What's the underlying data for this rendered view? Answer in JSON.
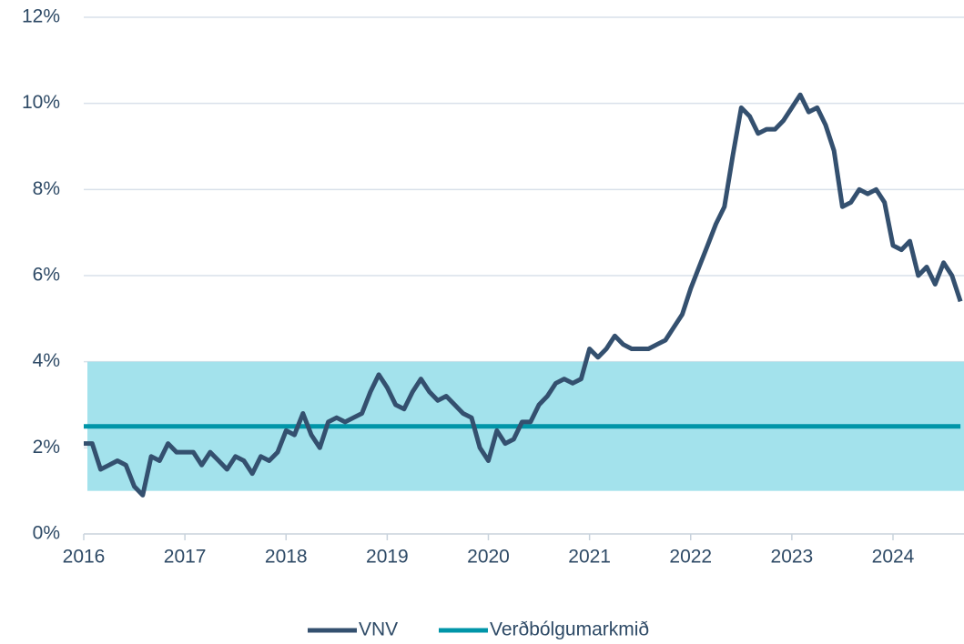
{
  "chart_data": {
    "type": "line",
    "categories": [
      "2016",
      null,
      null,
      null,
      null,
      null,
      null,
      null,
      null,
      null,
      null,
      null,
      "2017",
      null,
      null,
      null,
      null,
      null,
      null,
      null,
      null,
      null,
      null,
      null,
      "2018",
      null,
      null,
      null,
      null,
      null,
      null,
      null,
      null,
      null,
      null,
      null,
      "2019",
      null,
      null,
      null,
      null,
      null,
      null,
      null,
      null,
      null,
      null,
      null,
      "2020",
      null,
      null,
      null,
      null,
      null,
      null,
      null,
      null,
      null,
      null,
      null,
      "2021",
      null,
      null,
      null,
      null,
      null,
      null,
      null,
      null,
      null,
      null,
      null,
      "2022",
      null,
      null,
      null,
      null,
      null,
      null,
      null,
      null,
      null,
      null,
      null,
      "2023",
      null,
      null,
      null,
      null,
      null,
      null,
      null,
      null,
      null,
      null,
      null,
      "2024",
      null,
      null,
      null,
      null,
      null,
      null,
      null,
      null
    ],
    "series": [
      {
        "name": "VNV",
        "color": "#34506f",
        "values": [
          2.1,
          2.1,
          1.5,
          1.6,
          1.7,
          1.6,
          1.1,
          0.9,
          1.8,
          1.7,
          2.1,
          1.9,
          1.9,
          1.9,
          1.6,
          1.9,
          1.7,
          1.5,
          1.8,
          1.7,
          1.4,
          1.8,
          1.7,
          1.9,
          2.4,
          2.3,
          2.8,
          2.3,
          2.0,
          2.6,
          2.7,
          2.6,
          2.7,
          2.8,
          3.3,
          3.7,
          3.4,
          3.0,
          2.9,
          3.3,
          3.6,
          3.3,
          3.1,
          3.2,
          3.0,
          2.8,
          2.7,
          2.0,
          1.7,
          2.4,
          2.1,
          2.2,
          2.6,
          2.6,
          3.0,
          3.2,
          3.5,
          3.6,
          3.5,
          3.6,
          4.3,
          4.1,
          4.3,
          4.6,
          4.4,
          4.3,
          4.3,
          4.3,
          4.4,
          4.5,
          4.8,
          5.1,
          5.7,
          6.2,
          6.7,
          7.2,
          7.6,
          8.8,
          9.9,
          9.7,
          9.3,
          9.4,
          9.4,
          9.6,
          9.9,
          10.2,
          9.8,
          9.9,
          9.5,
          8.9,
          7.6,
          7.7,
          8.0,
          7.9,
          8.0,
          7.7,
          6.7,
          6.6,
          6.8,
          6.0,
          6.2,
          5.8,
          6.3,
          6.0,
          5.4
        ]
      },
      {
        "name": "Verðbólgumarkmið",
        "color": "#0095a8",
        "values": [
          2.5,
          2.5,
          2.5,
          2.5,
          2.5,
          2.5,
          2.5,
          2.5,
          2.5,
          2.5,
          2.5,
          2.5,
          2.5,
          2.5,
          2.5,
          2.5,
          2.5,
          2.5,
          2.5,
          2.5,
          2.5,
          2.5,
          2.5,
          2.5,
          2.5,
          2.5,
          2.5,
          2.5,
          2.5,
          2.5,
          2.5,
          2.5,
          2.5,
          2.5,
          2.5,
          2.5,
          2.5,
          2.5,
          2.5,
          2.5,
          2.5,
          2.5,
          2.5,
          2.5,
          2.5,
          2.5,
          2.5,
          2.5,
          2.5,
          2.5,
          2.5,
          2.5,
          2.5,
          2.5,
          2.5,
          2.5,
          2.5,
          2.5,
          2.5,
          2.5,
          2.5,
          2.5,
          2.5,
          2.5,
          2.5,
          2.5,
          2.5,
          2.5,
          2.5,
          2.5,
          2.5,
          2.5,
          2.5,
          2.5,
          2.5,
          2.5,
          2.5,
          2.5,
          2.5,
          2.5,
          2.5,
          2.5,
          2.5,
          2.5,
          2.5,
          2.5,
          2.5,
          2.5,
          2.5,
          2.5,
          2.5,
          2.5,
          2.5,
          2.5,
          2.5,
          2.5,
          2.5,
          2.5,
          2.5,
          2.5,
          2.5,
          2.5,
          2.5,
          2.5,
          2.5
        ]
      }
    ],
    "band": {
      "low": 1,
      "high": 4,
      "color": "#a3e2ec"
    },
    "ylim": [
      0,
      12
    ],
    "yticks": [
      {
        "value": 0,
        "label": "0%"
      },
      {
        "value": 2,
        "label": "2%"
      },
      {
        "value": 4,
        "label": "4%"
      },
      {
        "value": 6,
        "label": "6%"
      },
      {
        "value": 8,
        "label": "8%"
      },
      {
        "value": 10,
        "label": "10%"
      },
      {
        "value": 12,
        "label": "12%"
      }
    ],
    "grid": true,
    "legend": "bottom"
  }
}
